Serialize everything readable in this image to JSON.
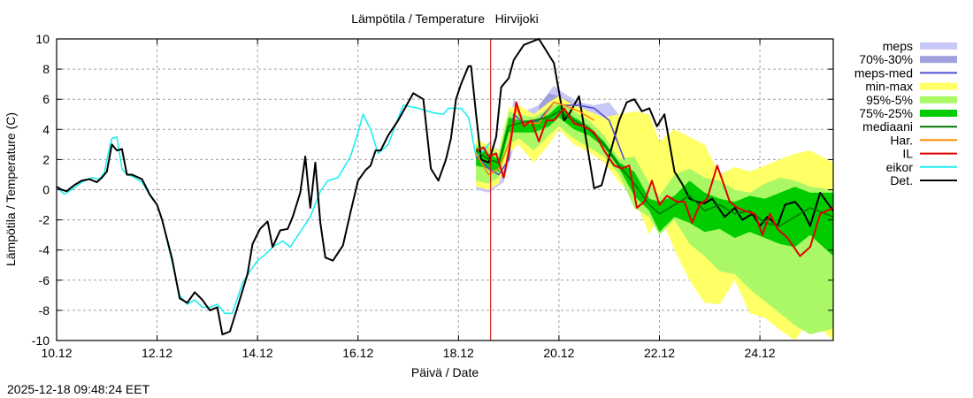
{
  "timestamp": "2025-12-18 09:48:24 EET",
  "chart_data": {
    "type": "line",
    "title": "Lämpötila / Temperature   Hirvijoki",
    "xlabel": "Päivä / Date",
    "ylabel": "Lämpötila / Temperature (C)",
    "x_units": "days since 10.12 00:00",
    "xlim": [
      0,
      15.46
    ],
    "ylim": [
      -10,
      10
    ],
    "grid": true,
    "legend_position": "right-outside",
    "x_ticks": [
      {
        "value": 0,
        "label": "10.12"
      },
      {
        "value": 2,
        "label": "12.12"
      },
      {
        "value": 4,
        "label": "14.12"
      },
      {
        "value": 6,
        "label": "16.12"
      },
      {
        "value": 8,
        "label": "18.12"
      },
      {
        "value": 10,
        "label": "20.12"
      },
      {
        "value": 12,
        "label": "22.12"
      },
      {
        "value": 14,
        "label": "24.12"
      }
    ],
    "y_ticks": [
      {
        "value": 10,
        "label": "10"
      },
      {
        "value": 8,
        "label": "8"
      },
      {
        "value": 6,
        "label": "6"
      },
      {
        "value": 4,
        "label": "4"
      },
      {
        "value": 2,
        "label": "2"
      },
      {
        "value": 0,
        "label": "0"
      },
      {
        "value": -2,
        "label": "-2"
      },
      {
        "value": -4,
        "label": "-4"
      },
      {
        "value": -6,
        "label": "-6"
      },
      {
        "value": -8,
        "label": "-8"
      },
      {
        "value": -10,
        "label": "-10"
      }
    ],
    "now_marker": {
      "x": 8.64,
      "color": "#cc0000"
    },
    "legend": [
      {
        "label": "meps",
        "kind": "band",
        "color": "#c8c8f8"
      },
      {
        "label": "70%-30%",
        "kind": "band",
        "color": "#a0a0dc"
      },
      {
        "label": "meps-med",
        "kind": "line",
        "color": "#5050d0"
      },
      {
        "label": "min-max",
        "kind": "band",
        "color": "#ffff66"
      },
      {
        "label": "95%-5%",
        "kind": "band",
        "color": "#aaf866"
      },
      {
        "label": "75%-25%",
        "kind": "band",
        "color": "#00cc00"
      },
      {
        "label": "mediaani",
        "kind": "line",
        "color": "#007700"
      },
      {
        "label": "Har.",
        "kind": "line",
        "color": "#ff8800"
      },
      {
        "label": "IL",
        "kind": "line",
        "color": "#e00000"
      },
      {
        "label": "eikor",
        "kind": "line",
        "color": "#22eeee"
      },
      {
        "label": "Det.",
        "kind": "line",
        "color": "#000000"
      }
    ],
    "bands": [
      {
        "name": "meps",
        "color": "#c8c8f8",
        "x": [
          8.35,
          8.6,
          8.9,
          9.1,
          9.3,
          9.6,
          9.9,
          10.1,
          10.4,
          10.7,
          11.0,
          11.3
        ],
        "upper": [
          3.2,
          3.0,
          2.5,
          6.0,
          5.2,
          5.6,
          6.9,
          6.4,
          5.8,
          5.6,
          5.8,
          4.5
        ],
        "lower": [
          0.0,
          -0.2,
          0.5,
          2.8,
          3.6,
          4.0,
          4.8,
          4.8,
          4.6,
          4.0,
          3.5,
          2.4
        ]
      },
      {
        "name": "70%-30%",
        "color": "#a0a0dc",
        "x": [
          9.6,
          9.8,
          10.0,
          10.2,
          10.4
        ],
        "upper": [
          5.6,
          6.4,
          6.2,
          5.9,
          5.4
        ],
        "lower": [
          5.0,
          5.4,
          5.6,
          5.3,
          5.0
        ]
      },
      {
        "name": "min-max",
        "color": "#ffff66",
        "x": [
          8.35,
          8.6,
          8.8,
          9.0,
          9.2,
          9.5,
          9.8,
          10.0,
          10.3,
          10.6,
          10.9,
          11.2,
          11.5,
          11.8,
          12.0,
          12.3,
          12.6,
          12.9,
          13.2,
          13.5,
          13.8,
          14.1,
          14.4,
          14.7,
          15.0,
          15.46
        ],
        "upper": [
          3.3,
          3.0,
          2.6,
          5.4,
          5.6,
          5.0,
          5.8,
          6.2,
          5.6,
          5.2,
          4.8,
          5.0,
          5.2,
          5.0,
          3.2,
          4.0,
          3.5,
          3.0,
          1.0,
          1.5,
          1.2,
          1.6,
          2.0,
          2.4,
          2.6,
          1.8
        ],
        "lower": [
          0.2,
          0.0,
          0.4,
          2.4,
          3.0,
          1.8,
          3.0,
          4.0,
          3.0,
          2.5,
          1.8,
          0.5,
          -0.5,
          -3.0,
          -1.5,
          -4.0,
          -6.0,
          -7.5,
          -7.6,
          -6.0,
          -8.2,
          -8.5,
          -9.3,
          -10.0,
          -8.5,
          -10.0
        ]
      },
      {
        "name": "95%-5%",
        "color": "#aaf866",
        "x": [
          8.35,
          8.6,
          8.8,
          9.0,
          9.2,
          9.5,
          9.8,
          10.0,
          10.3,
          10.6,
          10.9,
          11.2,
          11.5,
          11.8,
          12.0,
          12.3,
          12.6,
          12.9,
          13.2,
          13.5,
          13.8,
          14.1,
          14.4,
          14.7,
          15.0,
          15.46
        ],
        "upper": [
          3.0,
          2.8,
          2.4,
          5.2,
          5.0,
          4.8,
          5.4,
          5.8,
          5.2,
          4.6,
          3.6,
          2.0,
          2.2,
          0.4,
          -0.4,
          1.0,
          1.4,
          0.8,
          0.6,
          0.0,
          -0.2,
          0.4,
          0.8,
          0.6,
          0.2,
          0.0
        ],
        "lower": [
          0.6,
          0.4,
          0.8,
          3.0,
          3.4,
          2.6,
          3.6,
          4.2,
          3.4,
          2.8,
          2.2,
          1.0,
          -1.2,
          -1.8,
          -3.0,
          -2.0,
          -3.6,
          -4.4,
          -5.4,
          -5.6,
          -6.6,
          -7.4,
          -8.2,
          -9.0,
          -9.6,
          -9.2
        ]
      },
      {
        "name": "75%-25%",
        "color": "#00cc00",
        "x": [
          8.35,
          8.6,
          8.8,
          9.0,
          9.2,
          9.5,
          9.8,
          10.0,
          10.3,
          10.6,
          10.9,
          11.2,
          11.5,
          11.8,
          12.0,
          12.3,
          12.6,
          12.9,
          13.2,
          13.5,
          13.8,
          14.1,
          14.4,
          14.7,
          15.0,
          15.46
        ],
        "upper": [
          2.8,
          2.4,
          2.0,
          4.8,
          4.6,
          4.6,
          5.0,
          5.6,
          4.8,
          4.2,
          3.2,
          1.8,
          1.2,
          -0.6,
          -0.8,
          -0.4,
          0.6,
          -0.2,
          -0.6,
          -0.8,
          -0.4,
          -0.6,
          -0.2,
          0.2,
          -0.2,
          -0.2
        ],
        "lower": [
          1.6,
          1.4,
          1.2,
          3.8,
          3.8,
          3.8,
          4.2,
          4.8,
          4.0,
          3.6,
          2.8,
          1.4,
          -0.4,
          -1.4,
          -2.8,
          -1.8,
          -2.2,
          -2.8,
          -2.6,
          -3.2,
          -2.8,
          -3.2,
          -3.6,
          -3.8,
          -3.0,
          -4.4
        ]
      }
    ],
    "series": [
      {
        "name": "eikor",
        "color": "#22eeee",
        "width": 1.6,
        "x": [
          0,
          0.15,
          0.3,
          0.5,
          0.7,
          0.85,
          0.95,
          1.0,
          1.1,
          1.2,
          1.3,
          1.4,
          1.5,
          1.7,
          1.9,
          2.0,
          2.1,
          2.3,
          2.45,
          2.6,
          2.75,
          2.9,
          3.05,
          3.2,
          3.35,
          3.5,
          3.7,
          3.85,
          4.0,
          4.15,
          4.3,
          4.5,
          4.65,
          4.85,
          5.05,
          5.25,
          5.4,
          5.6,
          5.85,
          6.0,
          6.1,
          6.25,
          6.4,
          6.6,
          6.9,
          7.2,
          7.5,
          7.7,
          7.8,
          7.9,
          8.05,
          8.2,
          8.35,
          8.5,
          8.65
        ],
        "y": [
          0.2,
          -0.3,
          0.0,
          0.5,
          0.8,
          0.7,
          1.1,
          2.0,
          3.4,
          3.5,
          1.4,
          1.0,
          0.9,
          0.5,
          -0.6,
          -1.0,
          -2.0,
          -4.8,
          -7.0,
          -7.6,
          -7.3,
          -7.8,
          -7.8,
          -7.6,
          -8.2,
          -8.2,
          -6.2,
          -5.4,
          -4.7,
          -4.3,
          -3.8,
          -3.4,
          -3.8,
          -2.8,
          -1.8,
          -0.1,
          0.6,
          0.8,
          2.2,
          3.8,
          5.0,
          4.0,
          2.4,
          3.0,
          5.6,
          5.4,
          5.1,
          5.0,
          5.4,
          5.4,
          5.4,
          4.8,
          2.2,
          2.6,
          3.2
        ]
      },
      {
        "name": "Det.",
        "color": "#000000",
        "width": 2,
        "x": [
          0,
          0.1,
          0.2,
          0.35,
          0.5,
          0.65,
          0.8,
          0.9,
          1.0,
          1.05,
          1.1,
          1.2,
          1.3,
          1.4,
          1.5,
          1.7,
          1.85,
          2.0,
          2.1,
          2.3,
          2.45,
          2.6,
          2.75,
          2.9,
          3.05,
          3.2,
          3.3,
          3.45,
          3.6,
          3.8,
          3.9,
          4.05,
          4.2,
          4.3,
          4.45,
          4.6,
          4.7,
          4.85,
          4.95,
          5.05,
          5.15,
          5.25,
          5.35,
          5.5,
          5.7,
          5.85,
          6.0,
          6.15,
          6.25,
          6.35,
          6.45,
          6.6,
          6.8,
          6.95,
          7.1,
          7.3,
          7.45,
          7.6,
          7.75,
          7.85,
          7.95,
          8.05,
          8.2,
          8.25,
          8.35,
          8.45,
          8.6,
          8.75,
          8.85,
          9.0,
          9.1,
          9.3,
          9.6,
          9.9,
          10.1,
          10.2,
          10.4,
          10.7,
          10.85,
          11.0,
          11.2,
          11.35,
          11.5,
          11.65,
          11.8,
          11.95,
          12.1,
          12.3,
          12.45,
          12.6,
          12.75,
          12.9,
          13.05,
          13.3,
          13.5,
          13.65,
          13.85,
          14.0,
          14.15,
          14.35,
          14.5,
          14.7,
          14.85,
          15.0,
          15.2,
          15.46
        ],
        "y": [
          0.2,
          0.0,
          -0.1,
          0.3,
          0.6,
          0.7,
          0.5,
          0.8,
          1.2,
          2.1,
          3.0,
          2.6,
          2.7,
          1.0,
          1.0,
          0.7,
          -0.3,
          -1.0,
          -2.0,
          -4.6,
          -7.2,
          -7.5,
          -6.8,
          -7.3,
          -8.0,
          -7.8,
          -9.6,
          -9.4,
          -7.8,
          -5.6,
          -3.6,
          -2.6,
          -2.1,
          -3.8,
          -2.7,
          -2.6,
          -1.8,
          -0.2,
          2.2,
          -1.2,
          1.8,
          -2.2,
          -4.5,
          -4.7,
          -3.7,
          -1.5,
          0.6,
          1.3,
          1.6,
          2.6,
          2.6,
          3.6,
          4.6,
          5.5,
          6.4,
          6.0,
          1.4,
          0.6,
          2.0,
          3.4,
          6.0,
          7.0,
          8.2,
          8.2,
          5.0,
          2.0,
          1.8,
          3.5,
          6.8,
          7.4,
          8.6,
          9.6,
          10.0,
          8.4,
          4.6,
          5.0,
          6.2,
          0.1,
          0.3,
          2.2,
          4.6,
          5.8,
          6.0,
          5.2,
          5.4,
          4.2,
          5.0,
          1.2,
          0.4,
          -0.6,
          -0.8,
          -0.9,
          -0.6,
          -1.8,
          -1.2,
          -2.0,
          -1.6,
          -2.4,
          -1.8,
          -2.4,
          -1.0,
          -0.8,
          -1.4,
          -2.4,
          -0.2,
          -1.4
        ]
      },
      {
        "name": "meps-med",
        "color": "#5050d0",
        "width": 1.6,
        "x": [
          8.35,
          8.6,
          8.8,
          9.0,
          9.1,
          9.3,
          9.6,
          9.9,
          10.1,
          10.4,
          10.7,
          11.0,
          11.3
        ],
        "y": [
          2.2,
          1.4,
          1.0,
          2.0,
          5.0,
          4.4,
          4.6,
          5.8,
          5.6,
          5.6,
          5.4,
          4.6,
          2.0
        ]
      },
      {
        "name": "Har.",
        "color": "#ff8800",
        "width": 1.6,
        "x": [
          8.35,
          8.6,
          8.8,
          9.0,
          9.15,
          9.3,
          9.6,
          9.9,
          10.1,
          10.4,
          10.7
        ],
        "y": [
          2.4,
          1.0,
          1.4,
          3.0,
          5.4,
          4.4,
          4.4,
          5.8,
          5.6,
          5.2,
          4.6
        ]
      },
      {
        "name": "mediaani",
        "color": "#007700",
        "width": 1.6,
        "x": [
          8.35,
          8.6,
          8.8,
          9.0,
          9.2,
          9.5,
          9.8,
          10.0,
          10.3,
          10.6,
          10.9,
          11.2,
          11.5,
          11.8,
          12.0,
          12.3,
          12.6,
          12.9,
          13.2,
          13.5,
          13.8,
          14.1,
          14.4,
          14.7,
          15.0,
          15.46
        ],
        "y": [
          2.6,
          2.0,
          1.8,
          4.2,
          4.4,
          4.6,
          4.8,
          5.2,
          4.6,
          4.0,
          3.0,
          1.6,
          0.4,
          -1.0,
          -1.6,
          -1.0,
          -0.4,
          -1.4,
          -1.0,
          -1.6,
          -1.4,
          -2.2,
          -2.4,
          -1.8,
          -1.2,
          -1.8
        ]
      },
      {
        "name": "IL",
        "color": "#e00000",
        "width": 2,
        "x": [
          8.35,
          8.5,
          8.6,
          8.75,
          8.9,
          9.05,
          9.15,
          9.3,
          9.45,
          9.6,
          9.75,
          9.9,
          10.1,
          10.3,
          10.5,
          10.7,
          10.9,
          11.1,
          11.25,
          11.4,
          11.55,
          11.7,
          11.85,
          12.0,
          12.15,
          12.35,
          12.5,
          12.65,
          12.8,
          12.95,
          13.15,
          13.4,
          13.55,
          13.7,
          13.9,
          14.05,
          14.2,
          14.35,
          14.55,
          14.8,
          15.0,
          15.2,
          15.46
        ],
        "y": [
          2.6,
          2.8,
          2.2,
          2.4,
          0.8,
          3.4,
          5.8,
          4.2,
          4.6,
          3.2,
          4.6,
          4.6,
          5.4,
          4.4,
          4.2,
          3.8,
          2.6,
          1.6,
          1.4,
          1.6,
          -1.2,
          -0.8,
          0.6,
          -1.0,
          -0.4,
          -0.8,
          -0.8,
          -2.2,
          -1.0,
          -0.6,
          1.6,
          -0.8,
          -1.2,
          -1.4,
          -1.6,
          -3.0,
          -1.6,
          -2.6,
          -3.2,
          -4.4,
          -3.8,
          -1.6,
          -1.2
        ]
      }
    ]
  }
}
